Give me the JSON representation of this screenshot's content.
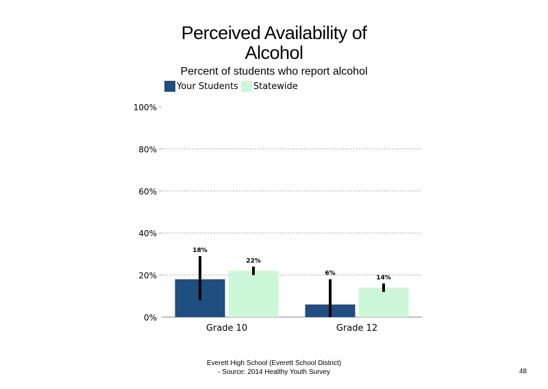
{
  "chart_data": {
    "type": "bar",
    "title": "Perceived Availability of Alcohol",
    "title_lines": [
      "Perceived Availability of",
      "Alcohol"
    ],
    "subtitle": "Percent of students  who report alcohol",
    "categories": [
      "Grade 10",
      "Grade 12"
    ],
    "series": [
      {
        "name": "Your Students",
        "color": "#1f4e80",
        "values": [
          18,
          6
        ],
        "labels": [
          "18%",
          "6%"
        ],
        "error_low": [
          8,
          0
        ],
        "error_high": [
          29,
          18
        ]
      },
      {
        "name": "Statewide",
        "color": "#ccf8d9",
        "values": [
          22,
          14
        ],
        "labels": [
          "22%",
          "14%"
        ],
        "error_low": [
          20,
          12
        ],
        "error_high": [
          24,
          16
        ]
      }
    ],
    "ylim": [
      0,
      100
    ],
    "yticks": [
      0,
      20,
      40,
      60,
      80,
      100
    ],
    "ytick_labels": [
      "0%",
      "20%",
      "40%",
      "60%",
      "80%",
      "100%"
    ],
    "grid": true,
    "legend_position": "top-left"
  },
  "footer": {
    "line1": "Everett High  School (Everett School District)",
    "line2": "- Source: 2014 Healthy  Youth Survey"
  },
  "page_number": "48"
}
